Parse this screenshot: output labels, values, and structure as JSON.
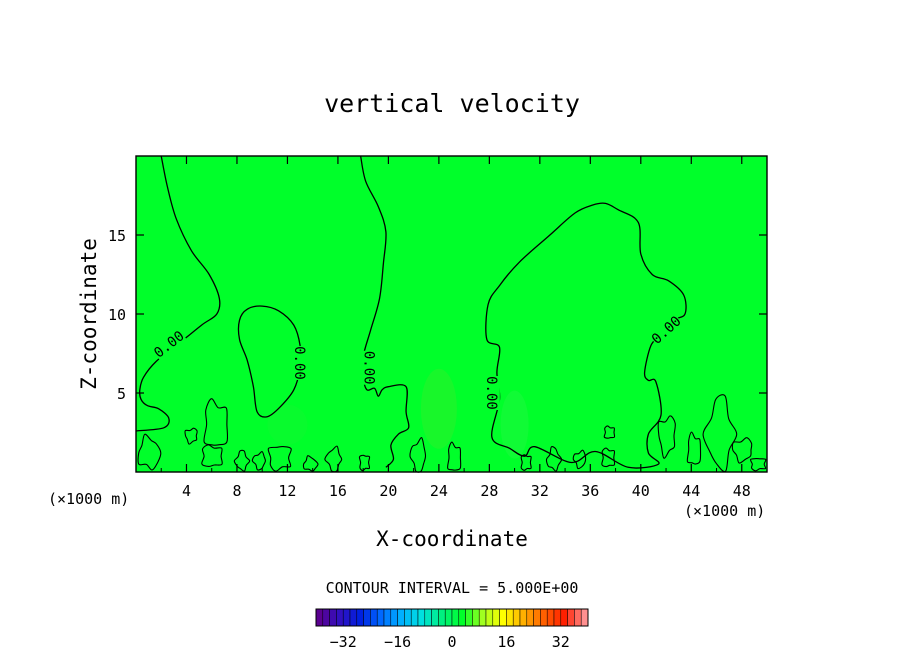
{
  "chart_data": {
    "type": "heatmap",
    "title": "vertical velocity",
    "xlabel": "X-coordinate",
    "ylabel": "Z-coordinate",
    "x_unit_left": "(×1000 m)",
    "x_unit_right": "(×1000 m)",
    "xlim": [
      0,
      50
    ],
    "ylim": [
      0,
      20
    ],
    "x_ticks": [
      4,
      8,
      12,
      16,
      20,
      24,
      28,
      32,
      36,
      40,
      44,
      48
    ],
    "y_ticks": [
      5,
      10,
      15
    ],
    "field_color": "#00ff2a",
    "contour_interval_text": "CONTOUR INTERVAL = 5.000E+00",
    "contour_level_label": "0.00",
    "contours": [
      {
        "name": "zero-contour-left-column",
        "points": [
          [
            2,
            20
          ],
          [
            2.5,
            18
          ],
          [
            3.2,
            16
          ],
          [
            4.4,
            14
          ],
          [
            5.8,
            12.5
          ],
          [
            6.6,
            11
          ],
          [
            6.4,
            10
          ],
          [
            5.2,
            9.3
          ],
          [
            3.2,
            8
          ],
          [
            1.6,
            7
          ],
          [
            0.6,
            6
          ],
          [
            0.3,
            5.2
          ],
          [
            0.4,
            4.6
          ],
          [
            0.9,
            4.2
          ],
          [
            1.8,
            4
          ],
          [
            2.6,
            3.4
          ],
          [
            2.2,
            2.8
          ],
          [
            0,
            2.6
          ]
        ],
        "label_at": [
          2.6,
          8.1
        ],
        "label_rotation": -38
      },
      {
        "name": "zero-contour-cell-10-6",
        "closed": true,
        "points": [
          [
            8.2,
            9.6
          ],
          [
            8.8,
            10.3
          ],
          [
            10,
            10.5
          ],
          [
            11.3,
            10.2
          ],
          [
            12.5,
            9.3
          ],
          [
            13,
            8
          ],
          [
            13,
            6.6
          ],
          [
            12.5,
            5.2
          ],
          [
            11.4,
            4.1
          ],
          [
            10.4,
            3.5
          ],
          [
            9.6,
            3.8
          ],
          [
            9.3,
            5.4
          ],
          [
            8.8,
            7.1
          ],
          [
            8.2,
            8.4
          ]
        ],
        "label_at": [
          13,
          6.9
        ],
        "label_rotation": 90
      },
      {
        "name": "zero-contour-center-column",
        "points": [
          [
            17.8,
            20
          ],
          [
            18.2,
            18.4
          ],
          [
            19.2,
            16.8
          ],
          [
            19.8,
            15.2
          ],
          [
            19.6,
            13.2
          ],
          [
            19.3,
            11
          ],
          [
            18.6,
            9
          ],
          [
            18,
            7.3
          ],
          [
            18,
            6
          ],
          [
            18.3,
            5.2
          ],
          [
            18.9,
            5.3
          ],
          [
            19.2,
            4.8
          ],
          [
            19.5,
            5.2
          ],
          [
            20,
            5.4
          ],
          [
            21.4,
            5.4
          ],
          [
            21.4,
            3.8
          ],
          [
            21.6,
            2.8
          ],
          [
            20.8,
            2.4
          ],
          [
            20.2,
            1.7
          ],
          [
            20.4,
            0.8
          ],
          [
            19.8,
            0.3
          ]
        ],
        "label_at": [
          18.5,
          6.6
        ],
        "label_rotation": 90
      },
      {
        "name": "zero-contour-cell-33-11",
        "closed": true,
        "points": [
          [
            28.2,
            2.2
          ],
          [
            28.8,
            4.6
          ],
          [
            28.6,
            6.3
          ],
          [
            28.8,
            7.9
          ],
          [
            27.8,
            8.4
          ],
          [
            27.9,
            10.6
          ],
          [
            28.8,
            11.8
          ],
          [
            30.4,
            13.3
          ],
          [
            32.8,
            15
          ],
          [
            34.8,
            16.4
          ],
          [
            36.2,
            16.9
          ],
          [
            37.2,
            17
          ],
          [
            38.2,
            16.6
          ],
          [
            39.8,
            15.8
          ],
          [
            40,
            13.8
          ],
          [
            40.9,
            12.5
          ],
          [
            42.2,
            12.1
          ],
          [
            43.4,
            11.2
          ],
          [
            43.5,
            10
          ],
          [
            42.6,
            9.6
          ],
          [
            41.6,
            8.7
          ],
          [
            40.8,
            8
          ],
          [
            40.3,
            6.3
          ],
          [
            40.6,
            5.8
          ],
          [
            41.2,
            5.7
          ],
          [
            41.6,
            3.6
          ],
          [
            40.6,
            2.4
          ],
          [
            40.6,
            1.2
          ],
          [
            41.4,
            0.5
          ],
          [
            39,
            0.3
          ],
          [
            36.4,
            1.3
          ],
          [
            34.5,
            0.6
          ],
          [
            31.6,
            1.6
          ],
          [
            30.8,
            1
          ],
          [
            29.6,
            1.5
          ]
        ],
        "label_at": [
          28.2,
          5
        ],
        "label_rotation": 90
      },
      {
        "name": "zero-contour-cell-33-11-right-label",
        "points": [],
        "label_at": [
          42,
          9
        ],
        "label_rotation": -42
      }
    ],
    "near_surface_wiggles": true,
    "colorbar": {
      "ticks": [
        -32,
        -16,
        0,
        16,
        32
      ],
      "range": [
        -40,
        40
      ],
      "cells": 40,
      "colors": [
        "#5a0090",
        "#3010c0",
        "#0020e0",
        "#0068ff",
        "#00b0ff",
        "#00e0e0",
        "#00f080",
        "#00ff2a",
        "#a0ff20",
        "#ffff00",
        "#ffb000",
        "#ff6000",
        "#ff2000",
        "#ff9090"
      ]
    }
  }
}
